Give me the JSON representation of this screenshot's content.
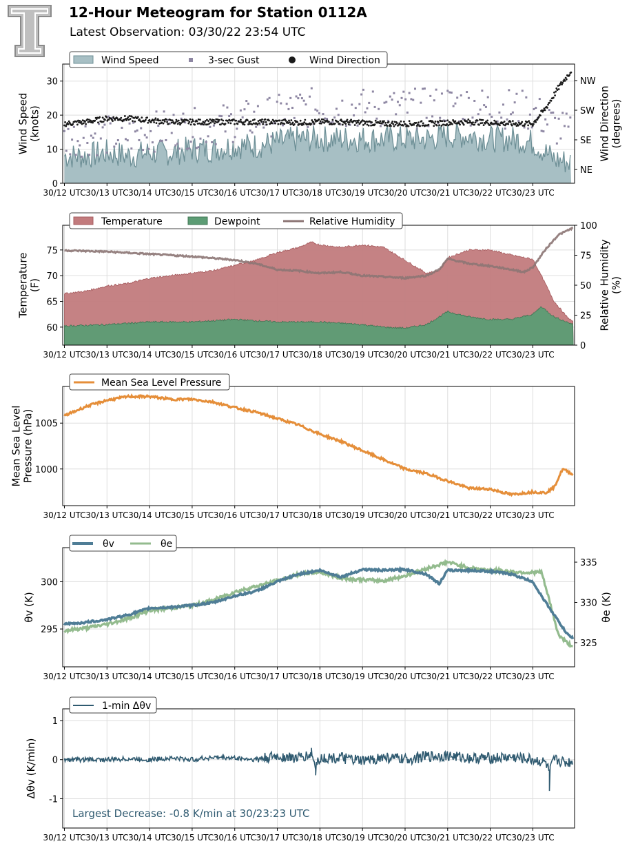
{
  "header": {
    "title": "12-Hour Meteogram for Station 0112A",
    "subtitle": "Latest Observation: 03/30/22 23:54 UTC"
  },
  "colors": {
    "wind_fill": "#a7bfc4",
    "wind_line": "#6d8f96",
    "gust": "#8e87a3",
    "direction": "#1a1a1a",
    "temperature": "#c27b7d",
    "dewpoint": "#5c9c74",
    "humidity": "#8c7574",
    "pressure": "#e58e39",
    "theta_v": "#4f7d96",
    "theta_e": "#93bb8e",
    "dtheta": "#2f5a70",
    "annotation": "#2f5a70",
    "grid": "#dddddd"
  },
  "x_ticks": [
    "30/12 UTC",
    "30/13 UTC",
    "30/14 UTC",
    "30/15 UTC",
    "30/16 UTC",
    "30/17 UTC",
    "30/18 UTC",
    "30/19 UTC",
    "30/20 UTC",
    "30/21 UTC",
    "30/22 UTC",
    "30/23 UTC"
  ],
  "chart_data": [
    {
      "type": "area",
      "panel": "wind",
      "ylabel": "Wind Speed\n(knots)",
      "y2label": "Wind Direction\n(degrees)",
      "ylim": [
        0,
        35
      ],
      "yticks": [
        0,
        10,
        20,
        30
      ],
      "y2ticks": [
        "NE",
        "SE",
        "SW",
        "NW"
      ],
      "legend": [
        "Wind Speed",
        "3-sec Gust",
        "Wind Direction"
      ],
      "series": [
        {
          "name": "Wind Speed",
          "x": [
            12,
            12.5,
            13,
            13.5,
            14,
            14.5,
            15,
            15.5,
            16,
            16.5,
            17,
            17.5,
            18,
            18.5,
            19,
            19.5,
            20,
            20.5,
            21,
            21.5,
            22,
            22.5,
            23,
            23.5,
            23.9
          ],
          "values": [
            8,
            8,
            9,
            8,
            9,
            9,
            10,
            10,
            11,
            11,
            12,
            13,
            13,
            13,
            13,
            13,
            13,
            13,
            14,
            14,
            13,
            13,
            12,
            7,
            6
          ]
        },
        {
          "name": "3-sec Gust",
          "x": [
            12,
            12.5,
            13,
            13.5,
            14,
            14.5,
            15,
            15.5,
            16,
            16.5,
            17,
            17.5,
            18,
            18.5,
            19,
            19.5,
            20,
            20.5,
            21,
            21.5,
            22,
            22.5,
            23,
            23.5,
            23.9
          ],
          "values": [
            13,
            14,
            14,
            14,
            15,
            16,
            16,
            17,
            18,
            19,
            20,
            22,
            22,
            22,
            22,
            22,
            22,
            22,
            23,
            23,
            22,
            22,
            21,
            17,
            14
          ]
        },
        {
          "name": "Wind Direction",
          "x": [
            12,
            12.5,
            13,
            13.5,
            14,
            14.5,
            15,
            15.5,
            16,
            16.5,
            17,
            17.5,
            18,
            18.5,
            19,
            19.5,
            20,
            20.5,
            21,
            21.5,
            22,
            22.5,
            23,
            23.3,
            23.6,
            23.9
          ],
          "values": [
            17.5,
            18,
            19,
            19,
            18.5,
            18,
            18,
            18,
            18,
            18,
            18,
            17.8,
            18,
            18,
            17.8,
            17.5,
            17.5,
            17.5,
            17.8,
            18,
            17.8,
            17.5,
            17.5,
            22,
            28,
            33
          ]
        }
      ]
    },
    {
      "type": "area",
      "panel": "temperature",
      "ylabel": "Temperature\n(F)",
      "y2label": "Relative Humidity\n(%)",
      "ylim": [
        56.5,
        79.8
      ],
      "yticks": [
        60,
        65,
        70,
        75
      ],
      "y2lim": [
        0,
        100
      ],
      "y2ticks": [
        0,
        25,
        50,
        75,
        100
      ],
      "legend": [
        "Temperature",
        "Dewpoint",
        "Relative Humidity"
      ],
      "series": [
        {
          "name": "Temperature",
          "x": [
            12,
            12.5,
            13,
            13.5,
            14,
            14.5,
            15,
            15.5,
            16,
            16.5,
            17,
            17.5,
            17.8,
            18,
            18.5,
            19,
            19.5,
            20,
            20.5,
            20.8,
            21,
            21.5,
            22,
            22.5,
            22.8,
            23,
            23.2,
            23.5,
            23.8,
            23.95
          ],
          "values": [
            66.5,
            67,
            68,
            68.5,
            69.5,
            70,
            70.5,
            71,
            72,
            73,
            74.5,
            75.5,
            76.5,
            76,
            75.5,
            76,
            75.5,
            73,
            70.5,
            71,
            73.5,
            75,
            75,
            74,
            73.5,
            73.2,
            70,
            65,
            62,
            61
          ]
        },
        {
          "name": "Dewpoint",
          "x": [
            12,
            13,
            14,
            15,
            16,
            17,
            18,
            19,
            19.5,
            20,
            20.5,
            21,
            21.5,
            22,
            22.5,
            23,
            23.2,
            23.5,
            23.8,
            23.95
          ],
          "values": [
            60.2,
            60.5,
            61,
            61,
            61.5,
            61,
            61,
            60.5,
            60,
            59.8,
            60.5,
            63,
            62,
            61.5,
            61.5,
            62.5,
            64,
            62,
            61,
            60.5
          ]
        },
        {
          "name": "Relative Humidity",
          "x": [
            12,
            13,
            14,
            15,
            16,
            16.5,
            17,
            17.5,
            18,
            18.5,
            19,
            19.5,
            20,
            20.5,
            20.8,
            21,
            21.5,
            22,
            22.5,
            22.8,
            23,
            23.3,
            23.6,
            23.95
          ],
          "values": [
            79,
            78,
            76,
            74,
            71,
            68,
            63,
            62,
            60,
            61,
            58,
            57,
            56,
            58,
            63,
            72,
            68,
            66,
            63,
            61,
            65,
            80,
            92,
            98
          ]
        }
      ]
    },
    {
      "type": "line",
      "panel": "pressure",
      "ylabel": "Mean Sea Level\nPressure (hPa)",
      "ylim": [
        996,
        1009
      ],
      "yticks": [
        1000,
        1005
      ],
      "legend": [
        "Mean Sea Level Pressure"
      ],
      "series": [
        {
          "name": "Mean Sea Level Pressure",
          "x": [
            12,
            12.5,
            13,
            13.5,
            14,
            14.5,
            15,
            15.5,
            16,
            16.5,
            17,
            17.5,
            18,
            18.5,
            19,
            19.5,
            20,
            20.5,
            21,
            21.5,
            22,
            22.5,
            23,
            23.3,
            23.5,
            23.7,
            23.95
          ],
          "values": [
            1005.8,
            1006.8,
            1007.5,
            1007.9,
            1007.9,
            1007.6,
            1007.6,
            1007.3,
            1006.7,
            1006.2,
            1005.5,
            1004.8,
            1003.8,
            1003,
            1002,
            1001,
            1000,
            999.5,
            998.7,
            997.9,
            997.8,
            997.2,
            997.5,
            997.4,
            998,
            1000,
            999.4
          ]
        }
      ]
    },
    {
      "type": "line",
      "panel": "theta",
      "ylabel": "θv (K)",
      "y2label": "θe (K)",
      "ylim": [
        291,
        303.6
      ],
      "yticks": [
        295,
        300
      ],
      "y2lim": [
        322,
        336.8
      ],
      "y2ticks": [
        325,
        330,
        335
      ],
      "legend": [
        "θv",
        "θe"
      ],
      "series": [
        {
          "name": "θv",
          "x": [
            12,
            12.5,
            13,
            13.5,
            14,
            14.5,
            15,
            15.5,
            16,
            16.5,
            17,
            17.5,
            18,
            18.5,
            19,
            19.5,
            20,
            20.5,
            20.8,
            21,
            21.5,
            22,
            22.5,
            23,
            23.2,
            23.5,
            23.8,
            23.95
          ],
          "values": [
            295.5,
            295.7,
            296,
            296.5,
            297.2,
            297.3,
            297.5,
            297.8,
            298.5,
            299,
            300,
            300.8,
            301.2,
            300.5,
            301.3,
            301.2,
            301.3,
            300.8,
            299.8,
            301.2,
            301.2,
            301.1,
            300.8,
            300,
            298.5,
            296.5,
            294.5,
            294
          ]
        },
        {
          "name": "θe",
          "x": [
            12,
            12.5,
            13,
            13.5,
            14,
            14.5,
            15,
            15.5,
            16,
            16.5,
            17,
            17.5,
            18,
            18.5,
            19,
            19.5,
            20,
            20.5,
            21,
            21.5,
            22,
            22.5,
            23,
            23.2,
            23.4,
            23.6,
            23.8,
            23.95
          ],
          "values": [
            326.5,
            326.8,
            327.3,
            328,
            329,
            329.3,
            329.6,
            330.3,
            331.3,
            332,
            332.7,
            333.5,
            333.8,
            333,
            332.8,
            332.7,
            333.3,
            334.2,
            335,
            334.3,
            334,
            333.8,
            333.7,
            333.8,
            330,
            326,
            325,
            324.5
          ]
        }
      ]
    },
    {
      "type": "line",
      "panel": "dtheta",
      "ylabel": "Δθv (K/min)",
      "ylim": [
        -1.75,
        1.3
      ],
      "yticks": [
        -1,
        0,
        1
      ],
      "legend": [
        "1-min Δθv"
      ],
      "annotation": "Largest Decrease: -0.8 K/min at 30/23:23 UTC",
      "series": [
        {
          "name": "1-min Δθv",
          "x": [
            12,
            12.5,
            13,
            13.5,
            14,
            14.5,
            15,
            15.5,
            16,
            16.5,
            17,
            17.5,
            17.8,
            17.9,
            18,
            18.5,
            19,
            19.5,
            20,
            20.5,
            21,
            21.5,
            22,
            22.5,
            23,
            23.3,
            23.39,
            23.5,
            23.8,
            23.95
          ],
          "values": [
            0,
            0,
            0,
            0.05,
            0,
            0.1,
            0,
            0.15,
            0.1,
            0,
            0.2,
            0.1,
            0.3,
            -0.4,
            0.1,
            0.1,
            -0.1,
            0.15,
            0,
            0.2,
            0.25,
            0.1,
            0.1,
            0.15,
            0,
            -0.2,
            -0.8,
            0,
            -0.2,
            -0.1
          ]
        }
      ]
    }
  ]
}
